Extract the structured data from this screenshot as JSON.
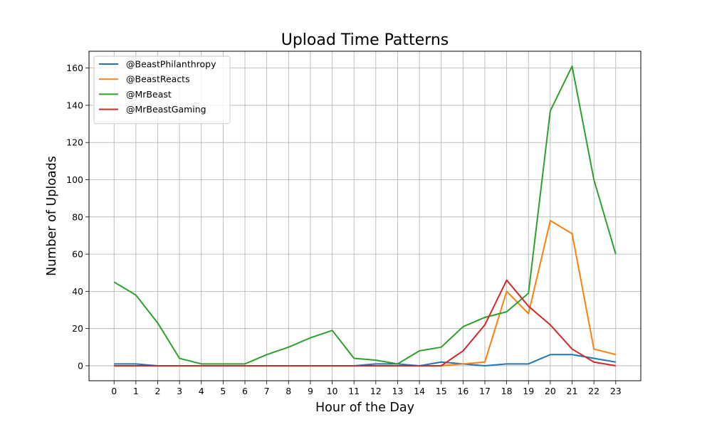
{
  "chart_data": {
    "type": "line",
    "title": "Upload Time Patterns",
    "xlabel": "Hour of the Day",
    "ylabel": "Number of Uploads",
    "x": [
      0,
      1,
      2,
      3,
      4,
      5,
      6,
      7,
      8,
      9,
      10,
      11,
      12,
      13,
      14,
      15,
      16,
      17,
      18,
      19,
      20,
      21,
      22,
      23
    ],
    "x_tick_labels": [
      "0",
      "1",
      "2",
      "3",
      "4",
      "5",
      "6",
      "7",
      "8",
      "9",
      "10",
      "11",
      "12",
      "13",
      "14",
      "15",
      "16",
      "17",
      "18",
      "19",
      "20",
      "21",
      "22",
      "23"
    ],
    "xlim": [
      -1.15,
      24.15
    ],
    "ylim": [
      -8.05,
      169.05
    ],
    "y_ticks": [
      0,
      20,
      40,
      60,
      80,
      100,
      120,
      140,
      160
    ],
    "grid": true,
    "legend_position": "top-left",
    "series": [
      {
        "name": "@BeastPhilanthropy",
        "color": "#1f77b4",
        "values": [
          1,
          1,
          0,
          0,
          0,
          0,
          0,
          0,
          0,
          0,
          0,
          0,
          1,
          1,
          0,
          2,
          1,
          0,
          1,
          1,
          6,
          6,
          4,
          2
        ]
      },
      {
        "name": "@BeastReacts",
        "color": "#ff7f0e",
        "values": [
          0,
          0,
          0,
          0,
          0,
          0,
          0,
          0,
          0,
          0,
          0,
          0,
          0,
          0,
          0,
          0,
          1,
          2,
          40,
          28,
          78,
          71,
          9,
          6
        ]
      },
      {
        "name": "@MrBeast",
        "color": "#2ca02c",
        "values": [
          45,
          38,
          23,
          4,
          1,
          1,
          1,
          6,
          10,
          15,
          19,
          4,
          3,
          1,
          8,
          10,
          21,
          26,
          29,
          39,
          137,
          161,
          100,
          60
        ]
      },
      {
        "name": "@MrBeastGaming",
        "color": "#d62728",
        "values": [
          0,
          0,
          0,
          0,
          0,
          0,
          0,
          0,
          0,
          0,
          0,
          0,
          0,
          0,
          0,
          0,
          8,
          22,
          46,
          32,
          22,
          9,
          2,
          0
        ]
      }
    ]
  }
}
